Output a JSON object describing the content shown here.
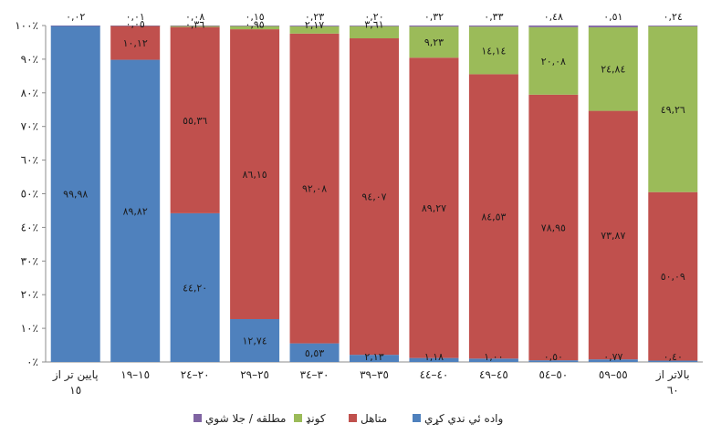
{
  "chart_data": {
    "type": "bar",
    "stacked": true,
    "categories": [
      "پايين تر از ١٥",
      "١٥–١٩",
      "٢٠–٢٤",
      "٢٥–٢٩",
      "٣٠–٣٤",
      "٣٥–٣٩",
      "٤٠–٤٤",
      "٤٥–٤٩",
      "٥٠–٥٤",
      "٥٥–٥٩",
      "بالاتر از ٦٠"
    ],
    "y_ticks": [
      "٠٪",
      "١٠٪",
      "٢٠٪",
      "٣٠٪",
      "٤٠٪",
      "٥٠٪",
      "٦٠٪",
      "٧٠٪",
      "٨٠٪",
      "٩٠٪",
      "١٠٠٪"
    ],
    "ylim": [
      0,
      100
    ],
    "legend_position": "bottom",
    "grid": false,
    "series": [
      {
        "name": "واده ئي ندي کړي",
        "color": "#4f81bd",
        "values": [
          99.98,
          89.82,
          44.2,
          12.74,
          5.53,
          2.13,
          1.18,
          1.0,
          0.5,
          0.77,
          0.4
        ],
        "labels": [
          "٩٩,٩٨",
          "٨٩,٨٢",
          "٤٤,٢٠",
          "١٢,٧٤",
          "٥,٥٣",
          "٢,١٣",
          "١,١٨",
          "١,٠٠",
          "٠,٥٠",
          "٠,٧٧",
          "٠,٤٠"
        ]
      },
      {
        "name": "متاهل",
        "color": "#c0504d",
        "values": [
          0.0,
          10.12,
          55.36,
          86.15,
          92.08,
          94.07,
          89.27,
          84.53,
          78.95,
          73.87,
          50.09
        ],
        "labels": [
          "",
          "١٠,١٢",
          "٥٥,٣٦",
          "٨٦,١٥",
          "٩٢,٠٨",
          "٩٤,٠٧",
          "٨٩,٢٧",
          "٨٤,٥٣",
          "٧٨,٩٥",
          "٧٣,٨٧",
          "٥٠,٠٩"
        ]
      },
      {
        "name": "کونډ",
        "color": "#9bbb59",
        "values": [
          0.0,
          0.05,
          0.36,
          0.95,
          2.17,
          3.61,
          9.23,
          14.14,
          20.08,
          24.84,
          49.26
        ],
        "labels": [
          "",
          "٠,٠٥",
          "٠,٣٦",
          "٠,٩٥",
          "٢,١٧",
          "٣,٦١",
          "٩,٢٣",
          "١٤,١٤",
          "٢٠,٠٨",
          "٢٤,٨٤",
          "٤٩,٢٦"
        ]
      },
      {
        "name": "مطلقه / جلا شوي",
        "color": "#8064a2",
        "values": [
          0.02,
          0.01,
          0.08,
          0.15,
          0.23,
          0.2,
          0.32,
          0.33,
          0.48,
          0.51,
          0.24
        ],
        "labels": [
          "٠,٠٢",
          "٠,٠١",
          "٠,٠٨",
          "٠,١٥",
          "٠,٢٣",
          "٠,٢٠",
          "٠,٣٢",
          "٠,٣٣",
          "٠,٤٨",
          "٠,٥١",
          "٠,٢٤"
        ]
      }
    ],
    "legend_order": [
      3,
      2,
      1,
      0
    ]
  }
}
